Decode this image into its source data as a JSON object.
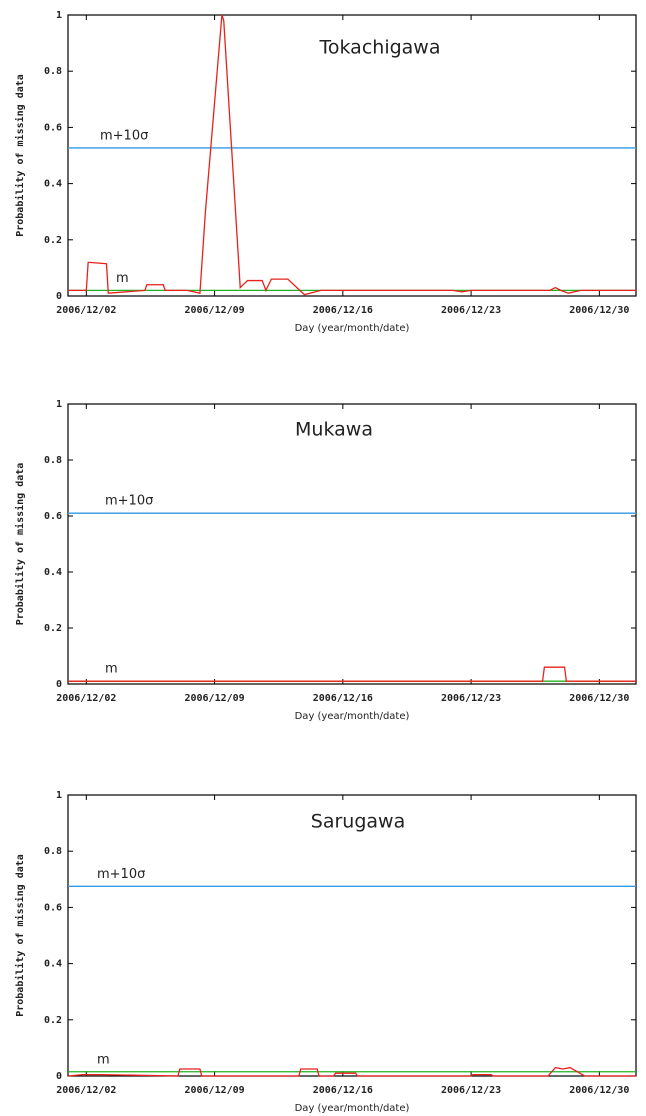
{
  "chart_data": [
    {
      "type": "line",
      "title": "Tokachigawa",
      "xlabel": "Day (year/month/date)",
      "ylabel": "Probability of missing data",
      "xlim": [
        1,
        32
      ],
      "ylim": [
        0,
        1
      ],
      "xticks": [
        {
          "value": 2,
          "label": "2006/12/02"
        },
        {
          "value": 9,
          "label": "2006/12/09"
        },
        {
          "value": 16,
          "label": "2006/12/16"
        },
        {
          "value": 23,
          "label": "2006/12/23"
        },
        {
          "value": 30,
          "label": "2006/12/30"
        }
      ],
      "yticks": [
        0,
        0.2,
        0.4,
        0.6,
        0.8,
        1
      ],
      "series": [
        {
          "color": "#e8211c",
          "x": [
            1,
            2,
            2.1,
            3.1,
            3.2,
            5.2,
            5.3,
            6.2,
            6.3,
            7.5,
            8.2,
            8.5,
            9.4,
            9.5,
            10.4,
            10.8,
            11.6,
            11.8,
            12.1,
            13.0,
            13.9,
            14.8,
            22,
            22.5,
            23,
            27.3,
            27.6,
            27.9,
            28.3,
            29,
            32
          ],
          "values": [
            0.02,
            0.02,
            0.12,
            0.115,
            0.01,
            0.02,
            0.04,
            0.04,
            0.02,
            0.02,
            0.01,
            0.3,
            1.0,
            0.98,
            0.03,
            0.055,
            0.055,
            0.02,
            0.06,
            0.06,
            0.005,
            0.02,
            0.02,
            0.015,
            0.02,
            0.02,
            0.03,
            0.02,
            0.01,
            0.02,
            0.02
          ]
        }
      ],
      "hlines": [
        {
          "value": 0.527,
          "label": "m+10σ",
          "color": "#3399e6"
        },
        {
          "value": 0.02,
          "label": "m",
          "color": "#22b022"
        }
      ]
    },
    {
      "type": "line",
      "title": "Mukawa",
      "xlabel": "Day (year/month/date)",
      "ylabel": "Probability of missing data",
      "xlim": [
        1,
        32
      ],
      "ylim": [
        0,
        1
      ],
      "xticks": [
        {
          "value": 2,
          "label": "2006/12/02"
        },
        {
          "value": 9,
          "label": "2006/12/09"
        },
        {
          "value": 16,
          "label": "2006/12/16"
        },
        {
          "value": 23,
          "label": "2006/12/23"
        },
        {
          "value": 30,
          "label": "2006/12/30"
        }
      ],
      "yticks": [
        0,
        0.2,
        0.4,
        0.6,
        0.8,
        1
      ],
      "series": [
        {
          "color": "#e8211c",
          "x": [
            1,
            26.9,
            27.0,
            28.1,
            28.2,
            32
          ],
          "values": [
            0.01,
            0.01,
            0.06,
            0.06,
            0.01,
            0.01
          ]
        }
      ],
      "hlines": [
        {
          "value": 0.61,
          "label": "m+10σ",
          "color": "#3399e6"
        },
        {
          "value": 0.01,
          "label": "m",
          "color": "#22b022"
        }
      ]
    },
    {
      "type": "line",
      "title": "Sarugawa",
      "xlabel": "Day (year/month/date)",
      "ylabel": "Probability of missing data",
      "xlim": [
        1,
        32
      ],
      "ylim": [
        0,
        1
      ],
      "xticks": [
        {
          "value": 2,
          "label": "2006/12/02"
        },
        {
          "value": 9,
          "label": "2006/12/09"
        },
        {
          "value": 16,
          "label": "2006/12/16"
        },
        {
          "value": 23,
          "label": "2006/12/23"
        },
        {
          "value": 30,
          "label": "2006/12/30"
        }
      ],
      "yticks": [
        0,
        0.2,
        0.4,
        0.6,
        0.8,
        1
      ],
      "series": [
        {
          "color": "#e8211c",
          "x": [
            1,
            1.8,
            2.8,
            7.0,
            7.1,
            8.2,
            8.3,
            13.6,
            13.7,
            14.6,
            14.7,
            15.5,
            15.6,
            16.7,
            16.8,
            23.0,
            23.1,
            24.1,
            24.2,
            27.2,
            27.6,
            28.0,
            28.4,
            29.2,
            32
          ],
          "values": [
            0,
            0.005,
            0.005,
            0,
            0.025,
            0.025,
            0,
            0,
            0.025,
            0.025,
            0,
            0,
            0.01,
            0.01,
            0,
            0,
            0.005,
            0.005,
            0,
            0,
            0.03,
            0.025,
            0.03,
            0,
            0
          ]
        }
      ],
      "hlines": [
        {
          "value": 0.675,
          "label": "m+10σ",
          "color": "#3399e6"
        },
        {
          "value": 0.015,
          "label": "m",
          "color": "#22b022"
        }
      ]
    }
  ]
}
